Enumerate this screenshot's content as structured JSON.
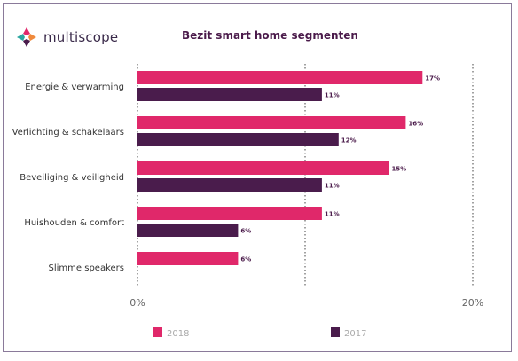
{
  "brand": {
    "name": "multiscope"
  },
  "chart_data": {
    "type": "bar",
    "orientation": "horizontal",
    "title": "Bezit smart home segmenten",
    "categories": [
      "Energie & verwarming",
      "Verlichting & schakelaars",
      "Beveiliging & veiligheid",
      "Huishouden & comfort",
      "Slimme speakers"
    ],
    "series": [
      {
        "name": "2018",
        "color": "#e0286a",
        "values": [
          17,
          16,
          15,
          11,
          6
        ],
        "labels": [
          "17%",
          "16%",
          "15%",
          "11%",
          "6%"
        ]
      },
      {
        "name": "2017",
        "color": "#4a1c4c",
        "values": [
          11,
          12,
          11,
          6,
          null
        ],
        "labels": [
          "11%",
          "12%",
          "11%",
          "6%",
          ""
        ]
      }
    ],
    "xlim": [
      0,
      20
    ],
    "xticks": [
      0,
      20
    ],
    "xtick_labels": [
      "0%",
      "20%"
    ],
    "grid": "dotted vertical",
    "legend_position": "bottom"
  }
}
